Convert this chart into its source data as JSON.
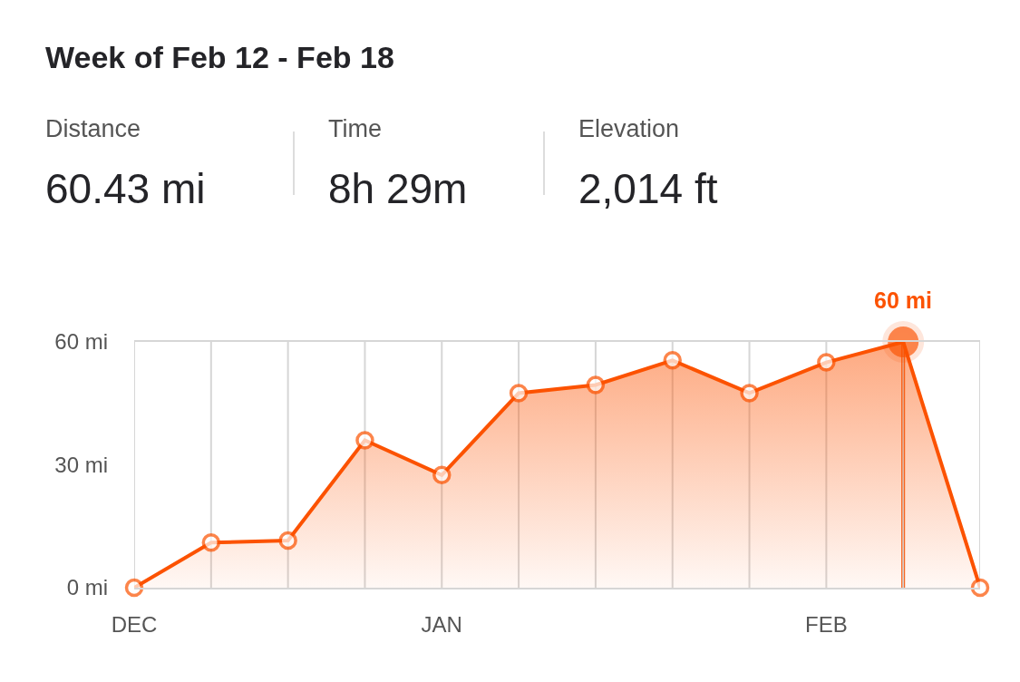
{
  "chart_data": {
    "type": "area",
    "title": "Week of Feb 12 - Feb 18",
    "annotations": [
      "Distance",
      "60.43 mi",
      "Time",
      "8h 29m",
      "Elevation",
      "2,014 ft",
      {
        "text": "60 mi",
        "y": 60
      }
    ],
    "categories": [
      "DEC",
      null,
      null,
      null,
      "JAN",
      null,
      null,
      null,
      null,
      "FEB",
      null,
      null
    ],
    "series": [
      {
        "color": "#fc5200",
        "values": [
          0,
          11,
          11.5,
          36,
          27.5,
          47.5,
          49.5,
          55.5,
          47.5,
          55,
          60,
          0
        ]
      }
    ],
    "ylim": [
      0,
      60
    ],
    "yticks": [
      {
        "value": 0,
        "label": "0 mi"
      },
      {
        "value": 30,
        "label": "30 mi"
      },
      {
        "value": 60,
        "label": "60 mi"
      }
    ],
    "grid": "x",
    "marker": "circle"
  }
}
